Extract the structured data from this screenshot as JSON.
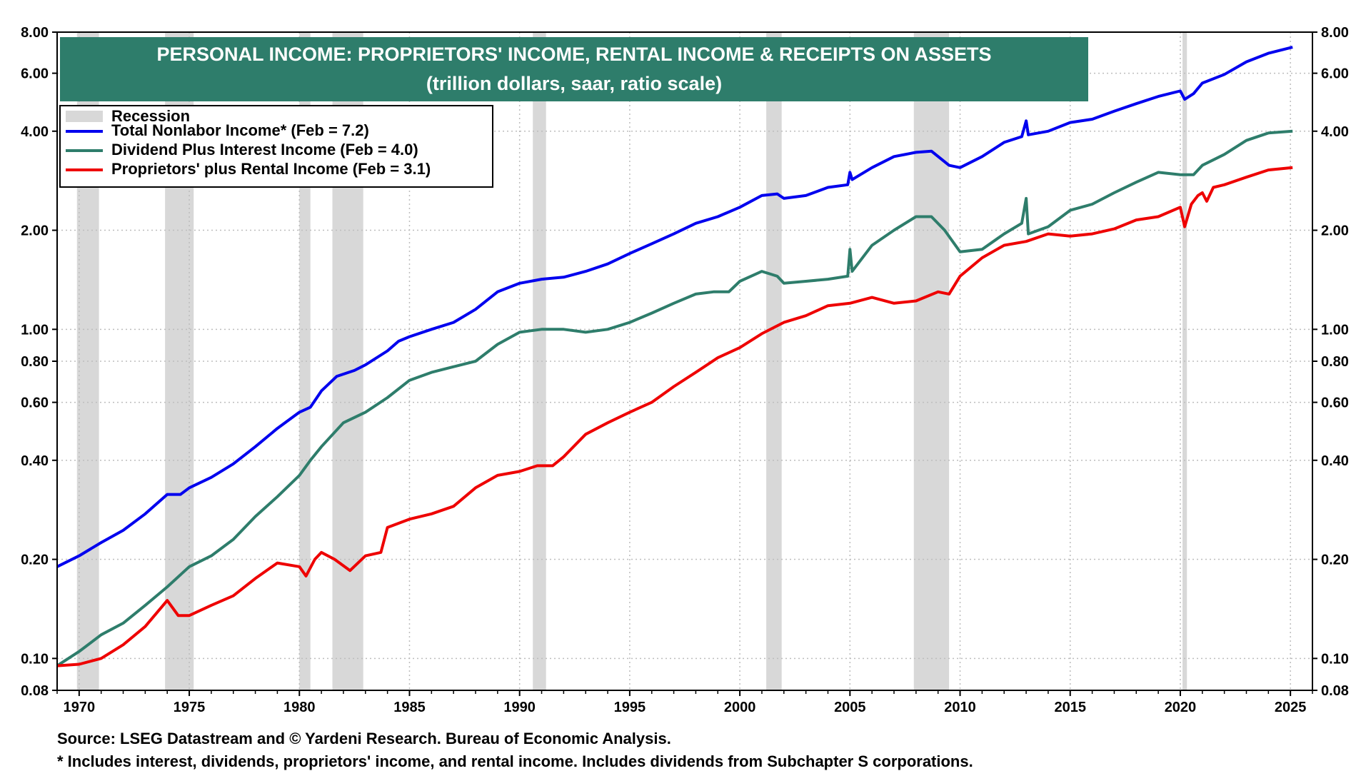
{
  "chart_data": {
    "type": "line",
    "title": "PERSONAL INCOME: PROPRIETORS' INCOME, RENTAL INCOME & RECEIPTS ON ASSETS",
    "subtitle": "(trillion dollars, saar, ratio scale)",
    "y_scale": "log",
    "ylim": [
      0.08,
      8.0
    ],
    "xlim": [
      1969,
      2026
    ],
    "x_ticks": [
      "1970",
      "1975",
      "1980",
      "1985",
      "1990",
      "1995",
      "2000",
      "2005",
      "2010",
      "2015",
      "2020",
      "2025"
    ],
    "y_ticks": [
      {
        "value": 0.08,
        "label": "0.08"
      },
      {
        "value": 0.1,
        "label": "0.10"
      },
      {
        "value": 0.2,
        "label": "0.20"
      },
      {
        "value": 0.4,
        "label": "0.40"
      },
      {
        "value": 0.6,
        "label": "0.60"
      },
      {
        "value": 0.8,
        "label": "0.80"
      },
      {
        "value": 1.0,
        "label": "1.00"
      },
      {
        "value": 2.0,
        "label": "2.00"
      },
      {
        "value": 4.0,
        "label": "4.00"
      },
      {
        "value": 6.0,
        "label": "6.00"
      },
      {
        "value": 8.0,
        "label": "8.00"
      }
    ],
    "grid": true,
    "legend_position": "top-left",
    "recessions": [
      [
        1969.9,
        1970.9
      ],
      [
        1973.9,
        1975.2
      ],
      [
        1980.0,
        1980.5
      ],
      [
        1981.5,
        1982.9
      ],
      [
        1990.6,
        1991.2
      ],
      [
        2001.2,
        2001.9
      ],
      [
        2007.9,
        2009.5
      ],
      [
        2020.1,
        2020.3
      ]
    ],
    "recession_label": "Recession",
    "series": [
      {
        "name": "Total Nonlabor Income* (Feb = 7.2)",
        "color": "#0000ee",
        "points": [
          [
            1969.0,
            0.19
          ],
          [
            1970.0,
            0.205
          ],
          [
            1971.0,
            0.225
          ],
          [
            1972.0,
            0.245
          ],
          [
            1973.0,
            0.275
          ],
          [
            1974.0,
            0.315
          ],
          [
            1974.6,
            0.315
          ],
          [
            1975.0,
            0.33
          ],
          [
            1976.0,
            0.355
          ],
          [
            1977.0,
            0.39
          ],
          [
            1978.0,
            0.44
          ],
          [
            1979.0,
            0.5
          ],
          [
            1980.0,
            0.56
          ],
          [
            1980.5,
            0.58
          ],
          [
            1981.0,
            0.65
          ],
          [
            1981.7,
            0.72
          ],
          [
            1982.5,
            0.75
          ],
          [
            1983.0,
            0.78
          ],
          [
            1984.0,
            0.86
          ],
          [
            1984.5,
            0.92
          ],
          [
            1985.0,
            0.95
          ],
          [
            1986.0,
            1.0
          ],
          [
            1987.0,
            1.05
          ],
          [
            1988.0,
            1.15
          ],
          [
            1989.0,
            1.3
          ],
          [
            1990.0,
            1.38
          ],
          [
            1991.0,
            1.42
          ],
          [
            1992.0,
            1.44
          ],
          [
            1993.0,
            1.5
          ],
          [
            1994.0,
            1.58
          ],
          [
            1995.0,
            1.7
          ],
          [
            1996.0,
            1.82
          ],
          [
            1997.0,
            1.95
          ],
          [
            1998.0,
            2.1
          ],
          [
            1999.0,
            2.2
          ],
          [
            2000.0,
            2.35
          ],
          [
            2001.0,
            2.55
          ],
          [
            2001.7,
            2.58
          ],
          [
            2002.0,
            2.5
          ],
          [
            2003.0,
            2.55
          ],
          [
            2004.0,
            2.7
          ],
          [
            2004.9,
            2.75
          ],
          [
            2005.0,
            3.0
          ],
          [
            2005.1,
            2.85
          ],
          [
            2006.0,
            3.1
          ],
          [
            2007.0,
            3.35
          ],
          [
            2008.0,
            3.45
          ],
          [
            2008.7,
            3.48
          ],
          [
            2009.5,
            3.15
          ],
          [
            2010.0,
            3.1
          ],
          [
            2011.0,
            3.35
          ],
          [
            2012.0,
            3.7
          ],
          [
            2012.8,
            3.85
          ],
          [
            2013.0,
            4.3
          ],
          [
            2013.1,
            3.9
          ],
          [
            2014.0,
            4.0
          ],
          [
            2015.0,
            4.25
          ],
          [
            2016.0,
            4.35
          ],
          [
            2017.0,
            4.6
          ],
          [
            2018.0,
            4.85
          ],
          [
            2019.0,
            5.1
          ],
          [
            2020.0,
            5.3
          ],
          [
            2020.2,
            5.0
          ],
          [
            2020.6,
            5.2
          ],
          [
            2021.0,
            5.6
          ],
          [
            2022.0,
            5.95
          ],
          [
            2023.0,
            6.5
          ],
          [
            2024.0,
            6.9
          ],
          [
            2025.1,
            7.2
          ]
        ]
      },
      {
        "name": "Dividend Plus Interest Income (Feb = 4.0)",
        "color": "#2e7d6b",
        "points": [
          [
            1969.0,
            0.095
          ],
          [
            1970.0,
            0.105
          ],
          [
            1971.0,
            0.118
          ],
          [
            1972.0,
            0.128
          ],
          [
            1973.0,
            0.145
          ],
          [
            1974.0,
            0.165
          ],
          [
            1975.0,
            0.19
          ],
          [
            1976.0,
            0.205
          ],
          [
            1977.0,
            0.23
          ],
          [
            1978.0,
            0.27
          ],
          [
            1979.0,
            0.31
          ],
          [
            1980.0,
            0.36
          ],
          [
            1980.5,
            0.4
          ],
          [
            1981.0,
            0.44
          ],
          [
            1982.0,
            0.52
          ],
          [
            1983.0,
            0.56
          ],
          [
            1984.0,
            0.62
          ],
          [
            1985.0,
            0.7
          ],
          [
            1986.0,
            0.74
          ],
          [
            1987.0,
            0.77
          ],
          [
            1988.0,
            0.8
          ],
          [
            1989.0,
            0.9
          ],
          [
            1990.0,
            0.98
          ],
          [
            1991.0,
            1.0
          ],
          [
            1992.0,
            1.0
          ],
          [
            1993.0,
            0.98
          ],
          [
            1994.0,
            1.0
          ],
          [
            1995.0,
            1.05
          ],
          [
            1996.0,
            1.12
          ],
          [
            1997.0,
            1.2
          ],
          [
            1998.0,
            1.28
          ],
          [
            1998.8,
            1.3
          ],
          [
            1999.5,
            1.3
          ],
          [
            2000.0,
            1.4
          ],
          [
            2001.0,
            1.5
          ],
          [
            2001.7,
            1.45
          ],
          [
            2002.0,
            1.38
          ],
          [
            2003.0,
            1.4
          ],
          [
            2004.0,
            1.42
          ],
          [
            2004.9,
            1.45
          ],
          [
            2005.0,
            1.75
          ],
          [
            2005.1,
            1.5
          ],
          [
            2006.0,
            1.8
          ],
          [
            2007.0,
            2.0
          ],
          [
            2008.0,
            2.2
          ],
          [
            2008.7,
            2.2
          ],
          [
            2009.3,
            2.0
          ],
          [
            2010.0,
            1.72
          ],
          [
            2011.0,
            1.75
          ],
          [
            2012.0,
            1.95
          ],
          [
            2012.8,
            2.1
          ],
          [
            2013.0,
            2.5
          ],
          [
            2013.1,
            1.95
          ],
          [
            2014.0,
            2.05
          ],
          [
            2015.0,
            2.3
          ],
          [
            2016.0,
            2.4
          ],
          [
            2017.0,
            2.6
          ],
          [
            2018.0,
            2.8
          ],
          [
            2019.0,
            3.0
          ],
          [
            2020.0,
            2.95
          ],
          [
            2020.6,
            2.95
          ],
          [
            2021.0,
            3.15
          ],
          [
            2022.0,
            3.4
          ],
          [
            2023.0,
            3.75
          ],
          [
            2024.0,
            3.95
          ],
          [
            2025.1,
            4.0
          ]
        ]
      },
      {
        "name": "Proprietors' plus Rental Income (Feb = 3.1)",
        "color": "#ee0000",
        "points": [
          [
            1969.0,
            0.095
          ],
          [
            1970.0,
            0.096
          ],
          [
            1971.0,
            0.1
          ],
          [
            1972.0,
            0.11
          ],
          [
            1973.0,
            0.125
          ],
          [
            1974.0,
            0.15
          ],
          [
            1974.5,
            0.135
          ],
          [
            1975.0,
            0.135
          ],
          [
            1976.0,
            0.145
          ],
          [
            1977.0,
            0.155
          ],
          [
            1978.0,
            0.175
          ],
          [
            1979.0,
            0.195
          ],
          [
            1980.0,
            0.19
          ],
          [
            1980.3,
            0.178
          ],
          [
            1980.7,
            0.2
          ],
          [
            1981.0,
            0.21
          ],
          [
            1981.6,
            0.2
          ],
          [
            1982.3,
            0.185
          ],
          [
            1983.0,
            0.205
          ],
          [
            1983.7,
            0.21
          ],
          [
            1984.0,
            0.25
          ],
          [
            1985.0,
            0.265
          ],
          [
            1986.0,
            0.275
          ],
          [
            1987.0,
            0.29
          ],
          [
            1988.0,
            0.33
          ],
          [
            1989.0,
            0.36
          ],
          [
            1990.0,
            0.37
          ],
          [
            1990.8,
            0.385
          ],
          [
            1991.5,
            0.385
          ],
          [
            1992.0,
            0.41
          ],
          [
            1993.0,
            0.48
          ],
          [
            1994.0,
            0.52
          ],
          [
            1995.0,
            0.56
          ],
          [
            1996.0,
            0.6
          ],
          [
            1997.0,
            0.67
          ],
          [
            1998.0,
            0.74
          ],
          [
            1999.0,
            0.82
          ],
          [
            2000.0,
            0.88
          ],
          [
            2001.0,
            0.97
          ],
          [
            2002.0,
            1.05
          ],
          [
            2003.0,
            1.1
          ],
          [
            2004.0,
            1.18
          ],
          [
            2005.0,
            1.2
          ],
          [
            2006.0,
            1.25
          ],
          [
            2007.0,
            1.2
          ],
          [
            2008.0,
            1.22
          ],
          [
            2009.0,
            1.3
          ],
          [
            2009.5,
            1.28
          ],
          [
            2010.0,
            1.45
          ],
          [
            2011.0,
            1.65
          ],
          [
            2012.0,
            1.8
          ],
          [
            2013.0,
            1.85
          ],
          [
            2014.0,
            1.95
          ],
          [
            2015.0,
            1.92
          ],
          [
            2016.0,
            1.95
          ],
          [
            2017.0,
            2.02
          ],
          [
            2018.0,
            2.15
          ],
          [
            2019.0,
            2.2
          ],
          [
            2020.0,
            2.35
          ],
          [
            2020.2,
            2.05
          ],
          [
            2020.5,
            2.4
          ],
          [
            2020.8,
            2.55
          ],
          [
            2021.0,
            2.6
          ],
          [
            2021.2,
            2.45
          ],
          [
            2021.5,
            2.7
          ],
          [
            2022.0,
            2.75
          ],
          [
            2023.0,
            2.9
          ],
          [
            2024.0,
            3.05
          ],
          [
            2025.1,
            3.1
          ]
        ]
      }
    ],
    "notes": [
      "Source: LSEG Datastream and © Yardeni Research. Bureau of Economic Analysis.",
      "* Includes interest, dividends, proprietors' income, and rental income. Includes dividends from Subchapter S corporations."
    ],
    "colors": {
      "title_bg": "#2e7d6b",
      "recession": "#d8d8d8",
      "grid": "#bdbdbd"
    }
  }
}
